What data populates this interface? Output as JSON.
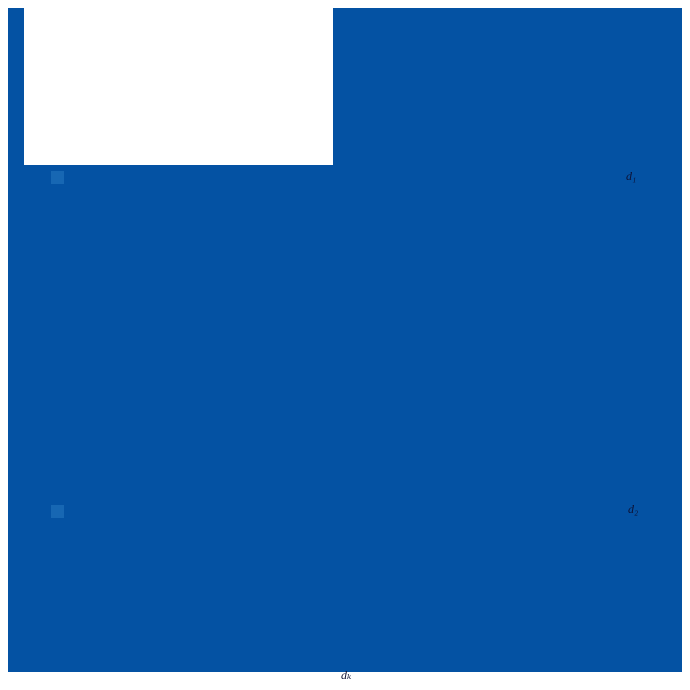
{
  "figure": {
    "colors": {
      "page_bg": "#ffffff",
      "canvas_blue": "#0452a3",
      "highlight_blue": "#1767b3",
      "label_ink": "#0d1033"
    },
    "labels": {
      "right_top": "d₁",
      "right_bottom": "d₂",
      "bottom_center": "dₖ"
    }
  }
}
